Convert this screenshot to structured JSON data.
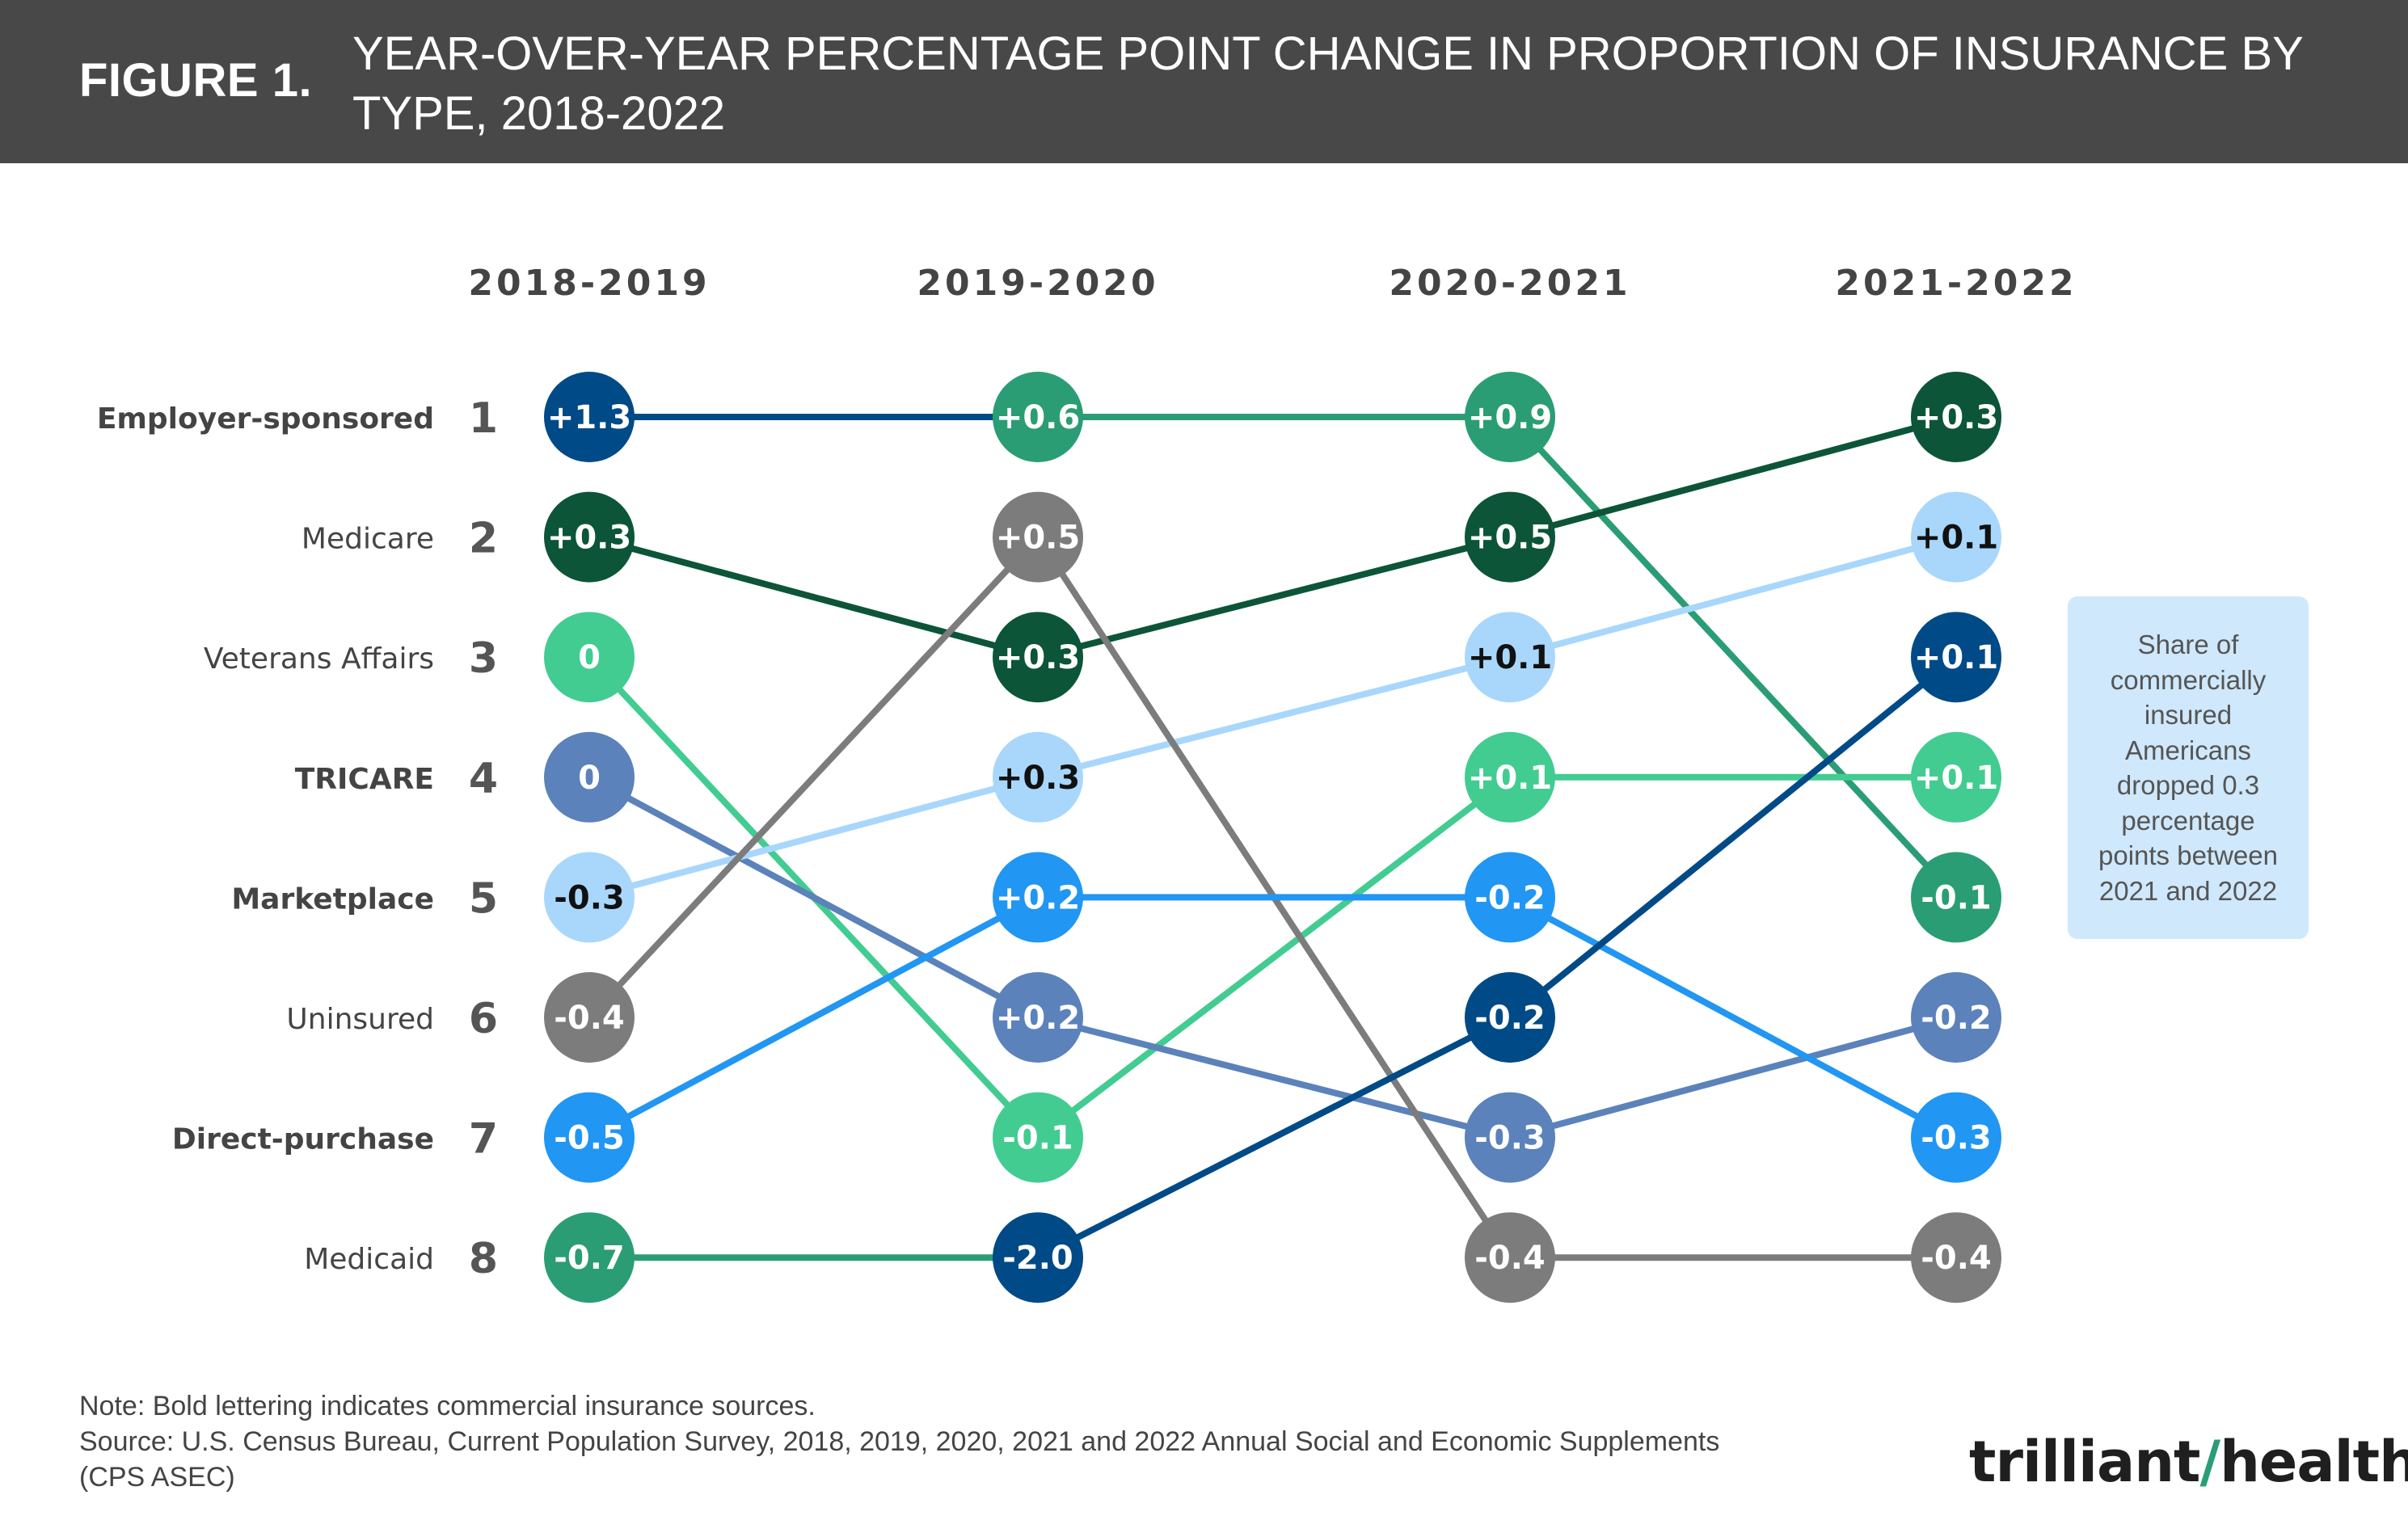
{
  "header": {
    "figure_label": "FIGURE 1.",
    "title": "YEAR-OVER-YEAR PERCENTAGE POINT CHANGE IN PROPORTION OF INSURANCE BY TYPE, 2018-2022"
  },
  "chart_data": {
    "type": "bump",
    "columns": [
      "2018-2019",
      "2019-2020",
      "2020-2021",
      "2021-2022"
    ],
    "rank_axis": [
      "1",
      "2",
      "3",
      "4",
      "5",
      "6",
      "7",
      "8"
    ],
    "row_labels": [
      {
        "label": "Employer-sponsored",
        "bold": true
      },
      {
        "label": "Medicare",
        "bold": false
      },
      {
        "label": "Veterans Affairs",
        "bold": false
      },
      {
        "label": "TRICARE",
        "bold": true
      },
      {
        "label": "Marketplace",
        "bold": true
      },
      {
        "label": "Uninsured",
        "bold": false
      },
      {
        "label": "Direct-purchase",
        "bold": true
      },
      {
        "label": "Medicaid",
        "bold": false
      }
    ],
    "series": [
      {
        "name": "Employer-sponsored",
        "color": "#2a9d74",
        "ranks": [
          1,
          1,
          1,
          5
        ],
        "labels": [
          "+1.3",
          "+0.6",
          "+0.9",
          "-0.1"
        ],
        "first_color": "#004a87"
      },
      {
        "name": "Medicare",
        "color": "#0c5538",
        "ranks": [
          2,
          3,
          2,
          1
        ],
        "labels": [
          "+0.3",
          "+0.3",
          "+0.5",
          "+0.3"
        ]
      },
      {
        "name": "Veterans Affairs",
        "color": "#42cc92",
        "ranks": [
          3,
          7,
          4,
          4
        ],
        "labels": [
          "0",
          "-0.1",
          "+0.1",
          "+0.1"
        ]
      },
      {
        "name": "TRICARE",
        "color": "#5b82ba",
        "ranks": [
          4,
          6,
          7,
          6
        ],
        "labels": [
          "0",
          "+0.2",
          "-0.3",
          "-0.2"
        ]
      },
      {
        "name": "Marketplace",
        "color": "#a8d7fb",
        "ranks": [
          5,
          4,
          3,
          2
        ],
        "labels": [
          "-0.3",
          "+0.3",
          "+0.1",
          "+0.1"
        ]
      },
      {
        "name": "Uninsured",
        "color": "#7c7c7c",
        "ranks": [
          6,
          2,
          8,
          8
        ],
        "labels": [
          "-0.4",
          "+0.5",
          "-0.4",
          "-0.4"
        ]
      },
      {
        "name": "Direct-purchase",
        "color": "#2196f3",
        "ranks": [
          7,
          5,
          5,
          7
        ],
        "labels": [
          "-0.5",
          "+0.2",
          "-0.2",
          "-0.3"
        ]
      },
      {
        "name": "Medicaid",
        "color": "#004a87",
        "ranks": [
          8,
          8,
          6,
          3
        ],
        "labels": [
          "-0.7",
          "-2.0",
          "-0.2",
          "+0.1"
        ],
        "first_color": "#2a9d74"
      }
    ]
  },
  "callout": {
    "lines": [
      "Share of",
      "commercially",
      "insured",
      "Americans",
      "dropped 0.3",
      "percentage",
      "points between",
      "2021 and 2022"
    ]
  },
  "footer": {
    "note": "Note: Bold lettering indicates commercial insurance sources.",
    "source_line1": "Source: U.S. Census Bureau, Current Population Survey, 2018, 2019, 2020, 2021 and 2022 Annual Social and Economic Supplements",
    "source_line2": "(CPS ASEC)"
  },
  "logo": {
    "part1": "trilliant",
    "part2": "health"
  }
}
